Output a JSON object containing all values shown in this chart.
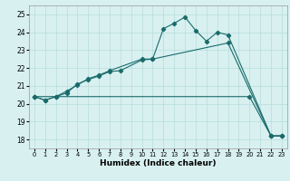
{
  "xlabel": "Humidex (Indice chaleur)",
  "bg_color": "#d8f0f0",
  "line_color": "#1a6b6b",
  "xlim": [
    -0.5,
    23.5
  ],
  "ylim": [
    17.5,
    25.5
  ],
  "xticks": [
    0,
    1,
    2,
    3,
    4,
    5,
    6,
    7,
    8,
    9,
    10,
    11,
    12,
    13,
    14,
    15,
    16,
    17,
    18,
    19,
    20,
    21,
    22,
    23
  ],
  "yticks": [
    18,
    19,
    20,
    21,
    22,
    23,
    24,
    25
  ],
  "line1_x": [
    0,
    1,
    2,
    3,
    4,
    5,
    6,
    7,
    8,
    10,
    11,
    12,
    13,
    14,
    15,
    16,
    17,
    18,
    22,
    23
  ],
  "line1_y": [
    20.4,
    20.2,
    20.4,
    20.6,
    21.1,
    21.35,
    21.55,
    21.8,
    21.85,
    22.45,
    22.5,
    24.2,
    24.5,
    24.85,
    24.1,
    23.5,
    24.0,
    23.85,
    18.2,
    18.2
  ],
  "line2_x": [
    0,
    1,
    2,
    3,
    4,
    5,
    6,
    7,
    10,
    11,
    18,
    22,
    23
  ],
  "line2_y": [
    20.4,
    20.2,
    20.4,
    20.7,
    21.05,
    21.4,
    21.6,
    21.85,
    22.5,
    22.5,
    23.4,
    18.2,
    18.2
  ],
  "line3_x": [
    0,
    20,
    22,
    23
  ],
  "line3_y": [
    20.4,
    20.4,
    18.2,
    18.2
  ]
}
